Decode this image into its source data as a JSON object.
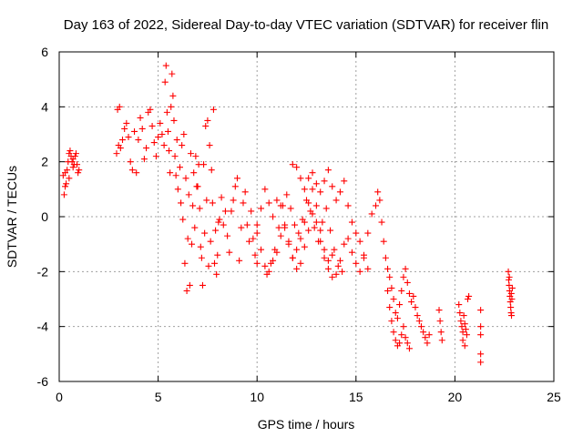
{
  "chart_data": {
    "type": "scatter",
    "title": "Day 163 of 2022, Sidereal Day-to-day VTEC variation (SDTVAR) for receiver flin",
    "xlabel": "GPS time / hours",
    "ylabel": "SDTVAR / TECUs",
    "xlim": [
      0,
      25
    ],
    "ylim": [
      -6,
      6
    ],
    "xticks": [
      0,
      5,
      10,
      15,
      20,
      25
    ],
    "yticks": [
      -6,
      -4,
      -2,
      0,
      2,
      4,
      6
    ],
    "xtick_labels": [
      "0",
      "5",
      "10",
      "15",
      "20",
      "25"
    ],
    "ytick_labels": [
      "-6",
      "-4",
      "-2",
      "0",
      "2",
      "4",
      "6"
    ],
    "grid": true,
    "marker": "+",
    "color": "#ff0000",
    "series": [
      {
        "name": "SDTVAR",
        "x": [
          0.2,
          0.25,
          0.3,
          0.35,
          0.4,
          0.45,
          0.5,
          0.55,
          0.6,
          0.65,
          0.7,
          0.75,
          0.8,
          0.85,
          0.9,
          0.95,
          1.0,
          0.3,
          0.5,
          0.7,
          2.9,
          2.95,
          3.0,
          3.05,
          3.1,
          3.2,
          3.3,
          3.4,
          3.5,
          3.6,
          3.7,
          3.8,
          3.9,
          4.0,
          4.1,
          4.2,
          4.3,
          4.4,
          4.5,
          4.6,
          4.7,
          4.8,
          4.9,
          5.0,
          5.1,
          5.2,
          5.3,
          5.35,
          5.4,
          5.45,
          5.5,
          5.55,
          5.6,
          5.65,
          5.7,
          5.75,
          5.8,
          5.85,
          5.9,
          5.95,
          6.0,
          6.1,
          6.2,
          6.3,
          6.4,
          6.5,
          6.6,
          6.7,
          6.8,
          6.9,
          7.0,
          7.1,
          7.2,
          7.3,
          7.4,
          7.5,
          7.6,
          7.7,
          7.8,
          7.9,
          8.0,
          6.15,
          6.25,
          6.35,
          6.45,
          6.55,
          6.65,
          6.75,
          6.85,
          6.95,
          7.05,
          7.15,
          7.25,
          7.35,
          7.45,
          7.55,
          7.65,
          7.75,
          7.85,
          7.95,
          8.05,
          8.1,
          8.2,
          8.3,
          8.4,
          8.5,
          8.6,
          8.7,
          8.8,
          8.9,
          9.0,
          9.1,
          9.2,
          9.3,
          9.4,
          9.5,
          9.6,
          9.7,
          9.8,
          9.9,
          10.0,
          10.0,
          10.2,
          10.4,
          10.6,
          10.8,
          11.0,
          11.2,
          11.4,
          11.6,
          11.8,
          12.0,
          12.2,
          12.4,
          12.6,
          12.8,
          13.0,
          13.2,
          13.4,
          13.6,
          13.8,
          10.0,
          10.2,
          10.4,
          10.6,
          10.8,
          11.0,
          11.2,
          11.4,
          11.6,
          11.8,
          12.0,
          12.2,
          12.4,
          12.6,
          12.8,
          13.0,
          13.2,
          13.4,
          13.6,
          13.8,
          10.5,
          10.7,
          10.9,
          11.1,
          11.3,
          11.5,
          11.7,
          11.9,
          12.1,
          12.3,
          12.5,
          12.7,
          12.9,
          13.1,
          13.3,
          13.5,
          13.7,
          13.9,
          14.1,
          14.3,
          11.8,
          12.0,
          12.2,
          12.4,
          12.6,
          12.8,
          13.0,
          13.2,
          13.4,
          13.6,
          13.8,
          14.0,
          14.2,
          14.4,
          14.6,
          14.8,
          15.0,
          15.2,
          15.4,
          15.6,
          14.0,
          14.2,
          14.4,
          14.6,
          14.8,
          15.0,
          15.2,
          15.4,
          15.6,
          15.8,
          16.0,
          16.1,
          16.2,
          16.3,
          16.4,
          16.5,
          16.6,
          16.7,
          16.8,
          16.9,
          17.0,
          17.1,
          17.2,
          17.3,
          17.4,
          17.5,
          17.6,
          17.7,
          17.8,
          16.6,
          16.7,
          16.8,
          16.9,
          17.0,
          17.1,
          17.2,
          17.3,
          17.4,
          17.5,
          17.6,
          17.7,
          17.9,
          18.0,
          18.1,
          18.2,
          18.3,
          18.4,
          18.5,
          18.6,
          18.7,
          19.2,
          19.25,
          19.3,
          19.35,
          20.2,
          20.25,
          20.3,
          20.35,
          20.4,
          20.45,
          20.5,
          20.55,
          20.6,
          20.65,
          20.7,
          20.4,
          20.5,
          21.3,
          21.3,
          21.3,
          21.3,
          21.3,
          22.7,
          22.72,
          22.74,
          22.76,
          22.78,
          22.8,
          22.82,
          22.84,
          22.86,
          22.88,
          22.9,
          22.75,
          22.85
        ],
        "y": [
          1.5,
          0.8,
          1.6,
          1.2,
          1.7,
          2.0,
          2.3,
          2.4,
          2.2,
          2.0,
          1.8,
          1.9,
          2.2,
          2.3,
          1.9,
          1.6,
          1.7,
          1.1,
          1.4,
          2.1,
          2.3,
          3.9,
          2.6,
          4.0,
          2.5,
          2.8,
          3.2,
          3.4,
          2.9,
          2.0,
          1.7,
          3.1,
          1.6,
          2.8,
          3.6,
          3.2,
          2.1,
          2.5,
          3.8,
          3.9,
          3.3,
          2.7,
          2.2,
          2.9,
          3.4,
          3.0,
          2.6,
          4.9,
          5.5,
          3.8,
          3.1,
          2.4,
          1.6,
          4.0,
          5.2,
          4.4,
          3.5,
          2.2,
          1.5,
          2.8,
          1.0,
          1.8,
          2.6,
          3.0,
          1.4,
          -0.8,
          -2.5,
          -1.0,
          1.6,
          2.2,
          1.1,
          0.3,
          -1.5,
          1.9,
          3.3,
          3.5,
          2.6,
          1.7,
          3.9,
          -0.5,
          -1.4,
          0.5,
          -0.1,
          -1.7,
          -2.7,
          0.8,
          2.3,
          0.4,
          -0.4,
          1.1,
          1.9,
          -1.1,
          -2.5,
          -0.6,
          0.6,
          -1.8,
          -0.9,
          0.5,
          -1.7,
          -2.1,
          -0.2,
          -0.1,
          0.7,
          -0.3,
          0.2,
          -0.7,
          -1.3,
          0.2,
          0.6,
          1.1,
          1.4,
          -1.6,
          -0.4,
          0.5,
          0.9,
          -0.3,
          -0.9,
          0.2,
          -0.8,
          -1.4,
          -1.7,
          -0.6,
          0.3,
          1.0,
          0.5,
          0.0,
          0.6,
          0.4,
          -0.3,
          -1.0,
          -1.5,
          -1.2,
          -0.8,
          -0.2,
          0.5,
          1.0,
          0.4,
          -0.5,
          -1.2,
          -1.6,
          -1.4,
          -0.3,
          -1.2,
          -1.8,
          -2.0,
          -1.6,
          -1.3,
          -0.7,
          -0.4,
          -0.9,
          -1.5,
          -1.9,
          -1.7,
          -1.1,
          -0.5,
          0.1,
          -0.2,
          -0.9,
          -1.5,
          -1.9,
          -2.2,
          -2.1,
          -1.7,
          -1.2,
          -0.4,
          0.4,
          0.8,
          0.3,
          -0.3,
          -0.6,
          -0.1,
          0.6,
          0.2,
          -0.4,
          -0.9,
          -0.2,
          0.3,
          -0.5,
          -1.2,
          -1.8,
          -2.0,
          1.9,
          1.8,
          1.4,
          1.0,
          1.4,
          1.6,
          1.2,
          0.9,
          1.3,
          1.7,
          1.1,
          0.6,
          0.9,
          1.3,
          0.4,
          -0.2,
          -0.6,
          -0.9,
          -1.5,
          -1.9,
          -2.1,
          -1.6,
          -1.0,
          -0.8,
          -1.3,
          -1.7,
          -2.0,
          -1.4,
          -0.6,
          0.1,
          0.4,
          0.9,
          0.6,
          -0.2,
          -0.9,
          -1.5,
          -1.9,
          -2.2,
          -2.6,
          -3.0,
          -3.5,
          -3.7,
          -3.2,
          -2.7,
          -2.2,
          -1.9,
          -2.4,
          -2.8,
          -3.1,
          -2.7,
          -3.3,
          -3.8,
          -4.2,
          -4.5,
          -4.7,
          -4.6,
          -4.3,
          -4.0,
          -4.4,
          -4.6,
          -4.8,
          -2.9,
          -3.3,
          -3.6,
          -3.8,
          -4.0,
          -4.2,
          -4.4,
          -4.6,
          -4.3,
          -3.4,
          -3.8,
          -4.2,
          -4.5,
          -3.2,
          -3.5,
          -3.8,
          -4.0,
          -4.2,
          -3.6,
          -3.9,
          -4.1,
          -4.3,
          -3.0,
          -2.9,
          -4.5,
          -4.7,
          -3.4,
          -4.0,
          -4.3,
          -5.0,
          -5.3,
          -2.0,
          -2.3,
          -2.5,
          -2.7,
          -2.9,
          -3.1,
          -3.3,
          -3.5,
          -3.6,
          -3.0,
          -2.6,
          -2.2,
          -2.8
        ]
      }
    ]
  }
}
